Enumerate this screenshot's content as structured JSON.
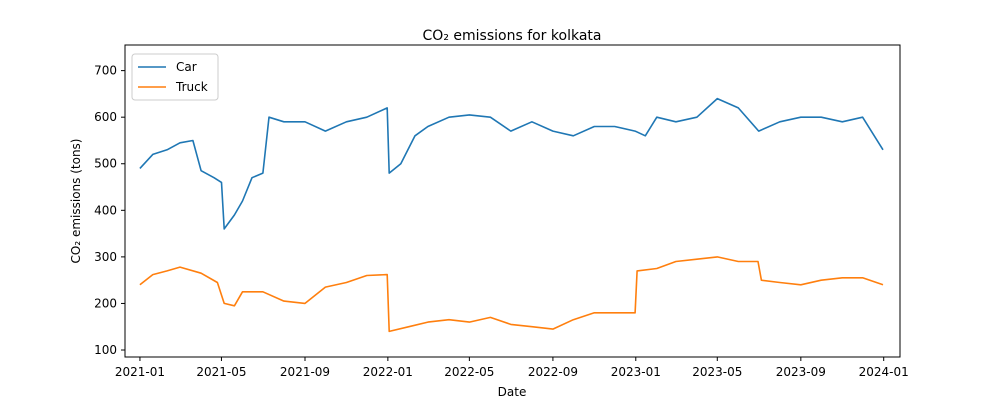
{
  "chart_data": {
    "type": "line",
    "title": "CO₂ emissions for kolkata",
    "xlabel": "Date",
    "ylabel": "CO₂ emissions (tons)",
    "xlim": [
      "2020-12-10",
      "2024-01-25"
    ],
    "ylim": [
      85,
      755
    ],
    "x_ticks": [
      "2021-01",
      "2021-05",
      "2021-09",
      "2022-01",
      "2022-05",
      "2022-09",
      "2023-01",
      "2023-05",
      "2023-09",
      "2024-01"
    ],
    "y_ticks": [
      100,
      200,
      300,
      400,
      500,
      600,
      700
    ],
    "grid": false,
    "legend_position": "top-left",
    "series": [
      {
        "name": "Car",
        "color": "#1f77b4",
        "points": [
          [
            "2021-01-01",
            490
          ],
          [
            "2021-01-20",
            520
          ],
          [
            "2021-02-10",
            530
          ],
          [
            "2021-03-01",
            545
          ],
          [
            "2021-03-20",
            550
          ],
          [
            "2021-04-01",
            485
          ],
          [
            "2021-04-20",
            470
          ],
          [
            "2021-05-01",
            460
          ],
          [
            "2021-05-05",
            360
          ],
          [
            "2021-05-20",
            390
          ],
          [
            "2021-06-01",
            420
          ],
          [
            "2021-06-15",
            470
          ],
          [
            "2021-07-01",
            480
          ],
          [
            "2021-07-10",
            600
          ],
          [
            "2021-08-01",
            590
          ],
          [
            "2021-09-01",
            590
          ],
          [
            "2021-10-01",
            570
          ],
          [
            "2021-11-01",
            590
          ],
          [
            "2021-12-01",
            600
          ],
          [
            "2021-12-31",
            620
          ],
          [
            "2022-01-03",
            480
          ],
          [
            "2022-01-20",
            500
          ],
          [
            "2022-02-10",
            560
          ],
          [
            "2022-03-01",
            580
          ],
          [
            "2022-04-01",
            600
          ],
          [
            "2022-05-01",
            605
          ],
          [
            "2022-06-01",
            600
          ],
          [
            "2022-07-01",
            570
          ],
          [
            "2022-08-01",
            590
          ],
          [
            "2022-09-01",
            570
          ],
          [
            "2022-10-01",
            560
          ],
          [
            "2022-11-01",
            580
          ],
          [
            "2022-12-01",
            580
          ],
          [
            "2022-12-31",
            570
          ],
          [
            "2023-01-15",
            560
          ],
          [
            "2023-02-01",
            600
          ],
          [
            "2023-03-01",
            590
          ],
          [
            "2023-04-01",
            600
          ],
          [
            "2023-05-01",
            640
          ],
          [
            "2023-06-01",
            620
          ],
          [
            "2023-07-01",
            570
          ],
          [
            "2023-08-01",
            590
          ],
          [
            "2023-09-01",
            600
          ],
          [
            "2023-10-01",
            600
          ],
          [
            "2023-11-01",
            590
          ],
          [
            "2023-12-01",
            600
          ],
          [
            "2023-12-31",
            530
          ]
        ]
      },
      {
        "name": "Truck",
        "color": "#ff7f0e",
        "points": [
          [
            "2021-01-01",
            240
          ],
          [
            "2021-01-20",
            262
          ],
          [
            "2021-02-10",
            270
          ],
          [
            "2021-03-01",
            278
          ],
          [
            "2021-04-01",
            265
          ],
          [
            "2021-04-25",
            245
          ],
          [
            "2021-05-05",
            200
          ],
          [
            "2021-05-20",
            195
          ],
          [
            "2021-06-01",
            225
          ],
          [
            "2021-07-01",
            225
          ],
          [
            "2021-08-01",
            205
          ],
          [
            "2021-09-01",
            200
          ],
          [
            "2021-10-01",
            235
          ],
          [
            "2021-11-01",
            245
          ],
          [
            "2021-12-01",
            260
          ],
          [
            "2021-12-31",
            262
          ],
          [
            "2022-01-03",
            140
          ],
          [
            "2022-02-01",
            150
          ],
          [
            "2022-03-01",
            160
          ],
          [
            "2022-04-01",
            165
          ],
          [
            "2022-05-01",
            160
          ],
          [
            "2022-06-01",
            170
          ],
          [
            "2022-07-01",
            155
          ],
          [
            "2022-08-01",
            150
          ],
          [
            "2022-09-01",
            145
          ],
          [
            "2022-10-01",
            165
          ],
          [
            "2022-11-01",
            180
          ],
          [
            "2022-12-01",
            180
          ],
          [
            "2022-12-31",
            180
          ],
          [
            "2023-01-03",
            270
          ],
          [
            "2023-02-01",
            275
          ],
          [
            "2023-03-01",
            290
          ],
          [
            "2023-04-01",
            295
          ],
          [
            "2023-05-01",
            300
          ],
          [
            "2023-06-01",
            290
          ],
          [
            "2023-06-30",
            290
          ],
          [
            "2023-07-05",
            250
          ],
          [
            "2023-08-01",
            245
          ],
          [
            "2023-09-01",
            240
          ],
          [
            "2023-10-01",
            250
          ],
          [
            "2023-11-01",
            255
          ],
          [
            "2023-12-01",
            255
          ],
          [
            "2023-12-31",
            240
          ]
        ]
      }
    ]
  }
}
